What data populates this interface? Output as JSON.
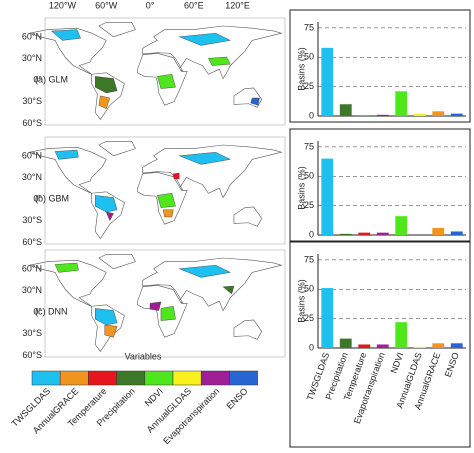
{
  "panels": [
    "(a) GLM",
    "(b) GBM",
    "(c) DNN"
  ],
  "map_axes": {
    "lon_labels": [
      "120°W",
      "60°W",
      "0°",
      "60°E",
      "120°E"
    ],
    "lat_labels": [
      "60°N",
      "30°N",
      "0°",
      "30°S",
      "60°S"
    ]
  },
  "legend": {
    "title": "Variables",
    "items": [
      {
        "label": "TWSGLDAS",
        "color": "#1ec0f0"
      },
      {
        "label": "AnnualGRACE",
        "color": "#f0961e"
      },
      {
        "label": "Temperature",
        "color": "#e8141e"
      },
      {
        "label": "Precipitation",
        "color": "#3c7828"
      },
      {
        "label": "NDVI",
        "color": "#50e61e"
      },
      {
        "label": "AnnualGLDAS",
        "color": "#faf01e"
      },
      {
        "label": "Evapotranspiration",
        "color": "#a01e96"
      },
      {
        "label": "ENSO",
        "color": "#2864d2"
      }
    ]
  },
  "chart_data": [
    {
      "type": "bar",
      "y_label": "Basins (%)",
      "ylim": [
        0,
        80
      ],
      "yticks": [
        0,
        25,
        50,
        75
      ],
      "grid": true,
      "colors": [
        "#1ec0f0",
        "#3c7828",
        "#e8141e",
        "#a01e96",
        "#50e61e",
        "#faf01e",
        "#f0961e",
        "#2864d2"
      ],
      "values": [
        58,
        10,
        0.5,
        1,
        21,
        2,
        4,
        2
      ]
    },
    {
      "type": "bar",
      "y_label": "Basins (%)",
      "ylim": [
        0,
        80
      ],
      "yticks": [
        0,
        25,
        50,
        75
      ],
      "grid": true,
      "colors": [
        "#1ec0f0",
        "#3c7828",
        "#e8141e",
        "#a01e96",
        "#50e61e",
        "#faf01e",
        "#f0961e",
        "#2864d2"
      ],
      "values": [
        65,
        1,
        2,
        2,
        16,
        0,
        6,
        3
      ]
    },
    {
      "type": "bar",
      "y_label": "Basins (%)",
      "ylim": [
        0,
        80
      ],
      "yticks": [
        0,
        25,
        50,
        75
      ],
      "grid": true,
      "colors": [
        "#1ec0f0",
        "#3c7828",
        "#e8141e",
        "#a01e96",
        "#50e61e",
        "#faf01e",
        "#f0961e",
        "#2864d2"
      ],
      "categories": [
        "TWSGLDAS",
        "Precipitation",
        "Temperature",
        "Evapotranspiration",
        "NDVI",
        "AnnualGLDAS",
        "AnnualGRACE",
        "ENSO"
      ],
      "values": [
        51,
        8,
        3,
        3,
        22,
        1,
        4,
        4
      ]
    }
  ]
}
